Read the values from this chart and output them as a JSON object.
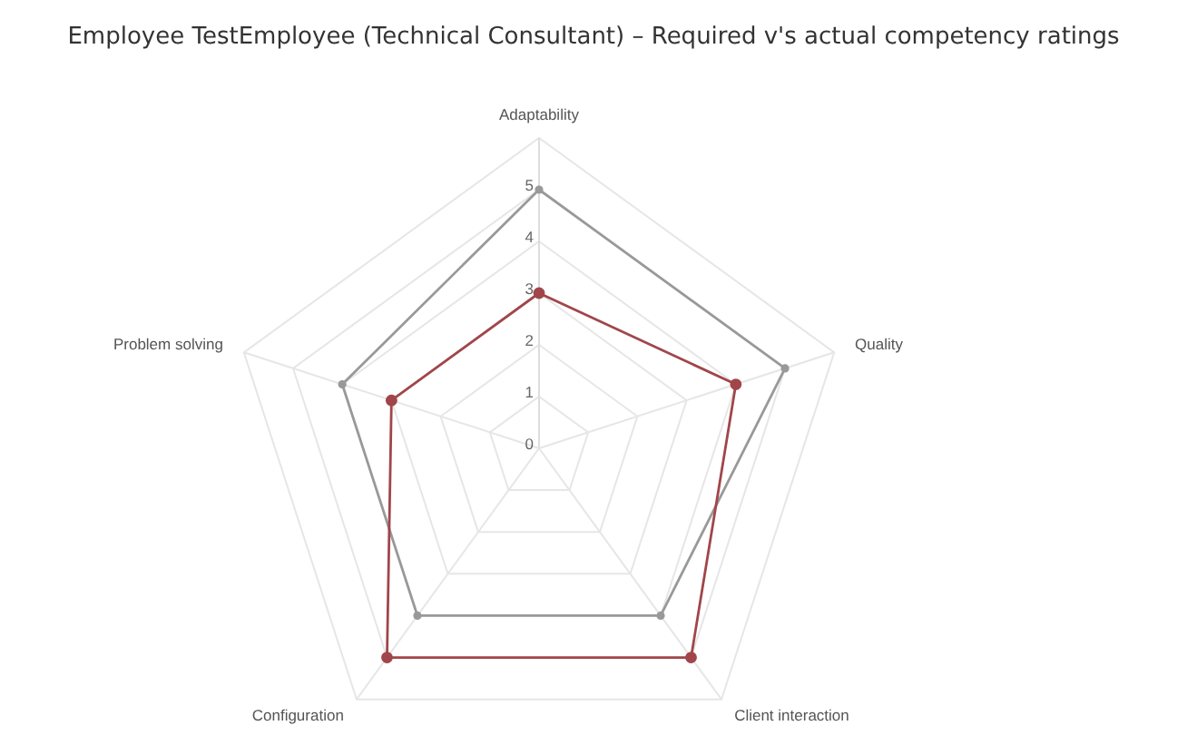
{
  "chart_data": {
    "type": "radar",
    "title": "Employee TestEmployee (Technical Consultant) – Required v's actual competency ratings",
    "categories": [
      "Adaptability",
      "Quality",
      "Client interaction",
      "Configuration",
      "Problem solving"
    ],
    "series": [
      {
        "color": "#999999",
        "values": [
          5,
          5,
          4,
          4,
          4
        ]
      },
      {
        "color": "#a0464a",
        "values": [
          3,
          4,
          5,
          5,
          3
        ]
      }
    ],
    "ylim": [
      0,
      6
    ],
    "yticks": [
      0,
      1,
      2,
      3,
      4,
      5
    ],
    "grid": true,
    "marker": "circle",
    "line_style": "solid"
  }
}
